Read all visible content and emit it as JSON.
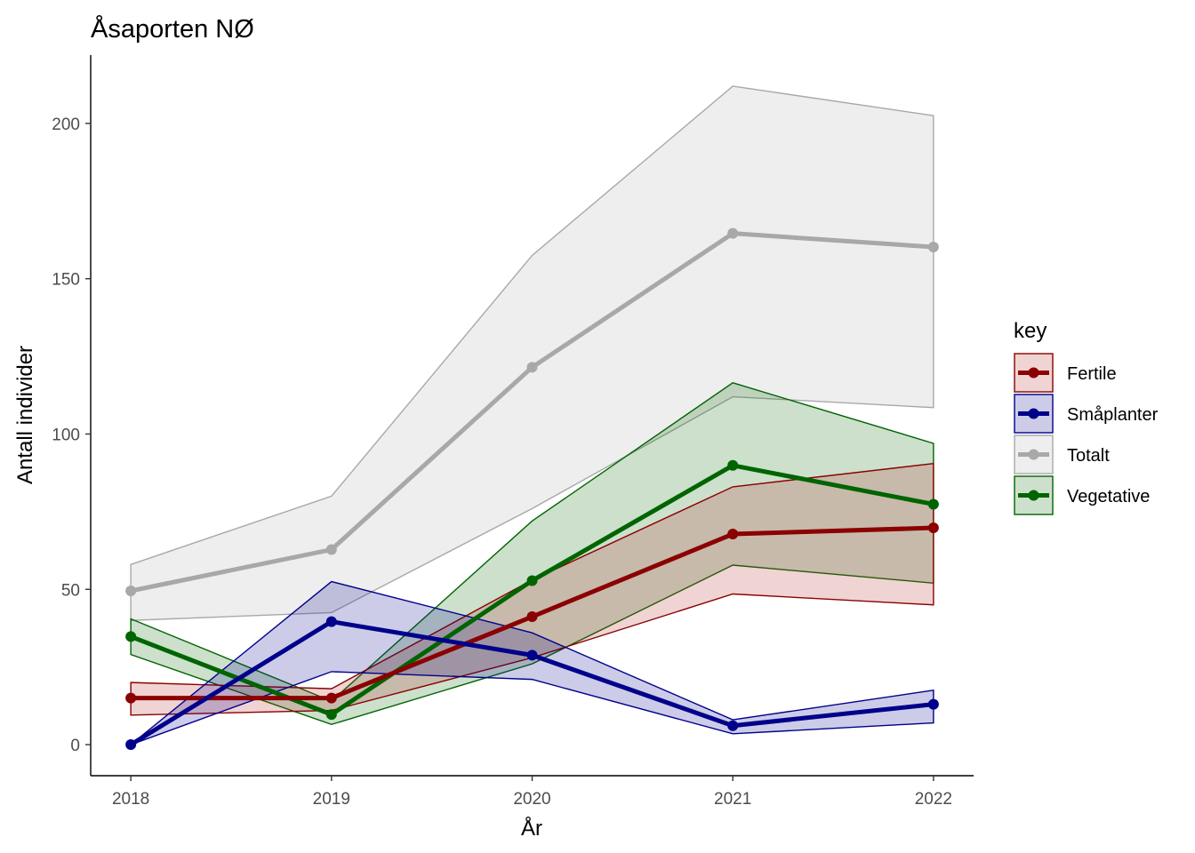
{
  "chart_data": {
    "type": "line",
    "title": "Åsaporten NØ",
    "xlabel": "År",
    "ylabel": "Antall individer",
    "x": [
      2018,
      2019,
      2020,
      2021,
      2022
    ],
    "x_tick_labels": [
      "2018",
      "2019",
      "2020",
      "2021",
      "2022"
    ],
    "xlim": [
      2017.8,
      2022.2
    ],
    "ylim": [
      -10,
      222
    ],
    "y_ticks": [
      0,
      50,
      100,
      150,
      200
    ],
    "y_tick_labels": [
      "0",
      "50",
      "100",
      "150",
      "200"
    ],
    "grid": false,
    "legend": {
      "title": "key",
      "position": "right"
    },
    "series": [
      {
        "name": "Totalt",
        "key": "totalt",
        "color": "#A8A8A8",
        "fill": "#C8C8C8",
        "values": [
          49.5,
          62.8,
          121.5,
          164.6,
          160.2
        ],
        "lower": [
          40,
          42.5,
          76,
          112,
          108.5
        ],
        "upper": [
          58,
          80,
          157.5,
          212,
          202.5
        ]
      },
      {
        "name": "Vegetative",
        "key": "vegetative",
        "color": "#006400",
        "fill": "#006400",
        "values": [
          34.8,
          9.7,
          52.8,
          89.9,
          77.4
        ],
        "lower": [
          29,
          6.5,
          26,
          57.8,
          52
        ],
        "upper": [
          40.5,
          14,
          72,
          116.5,
          97
        ]
      },
      {
        "name": "Fertile",
        "key": "fertile",
        "color": "#8B0000",
        "fill": "#B22222",
        "values": [
          15,
          15,
          41.2,
          67.8,
          69.8
        ],
        "lower": [
          9.5,
          11,
          28,
          48.5,
          45
        ],
        "upper": [
          20,
          18,
          53,
          83,
          90.5
        ]
      },
      {
        "name": "Småplanter",
        "key": "smaplanter",
        "color": "#00008B",
        "fill": "#00008B",
        "values": [
          0,
          39.6,
          28.8,
          6.1,
          13
        ],
        "lower": [
          0,
          23.5,
          21,
          3.5,
          7
        ],
        "upper": [
          0,
          52.5,
          36,
          8,
          17.5
        ]
      }
    ],
    "legend_order": [
      "Fertile",
      "Småplanter",
      "Totalt",
      "Vegetative"
    ]
  }
}
